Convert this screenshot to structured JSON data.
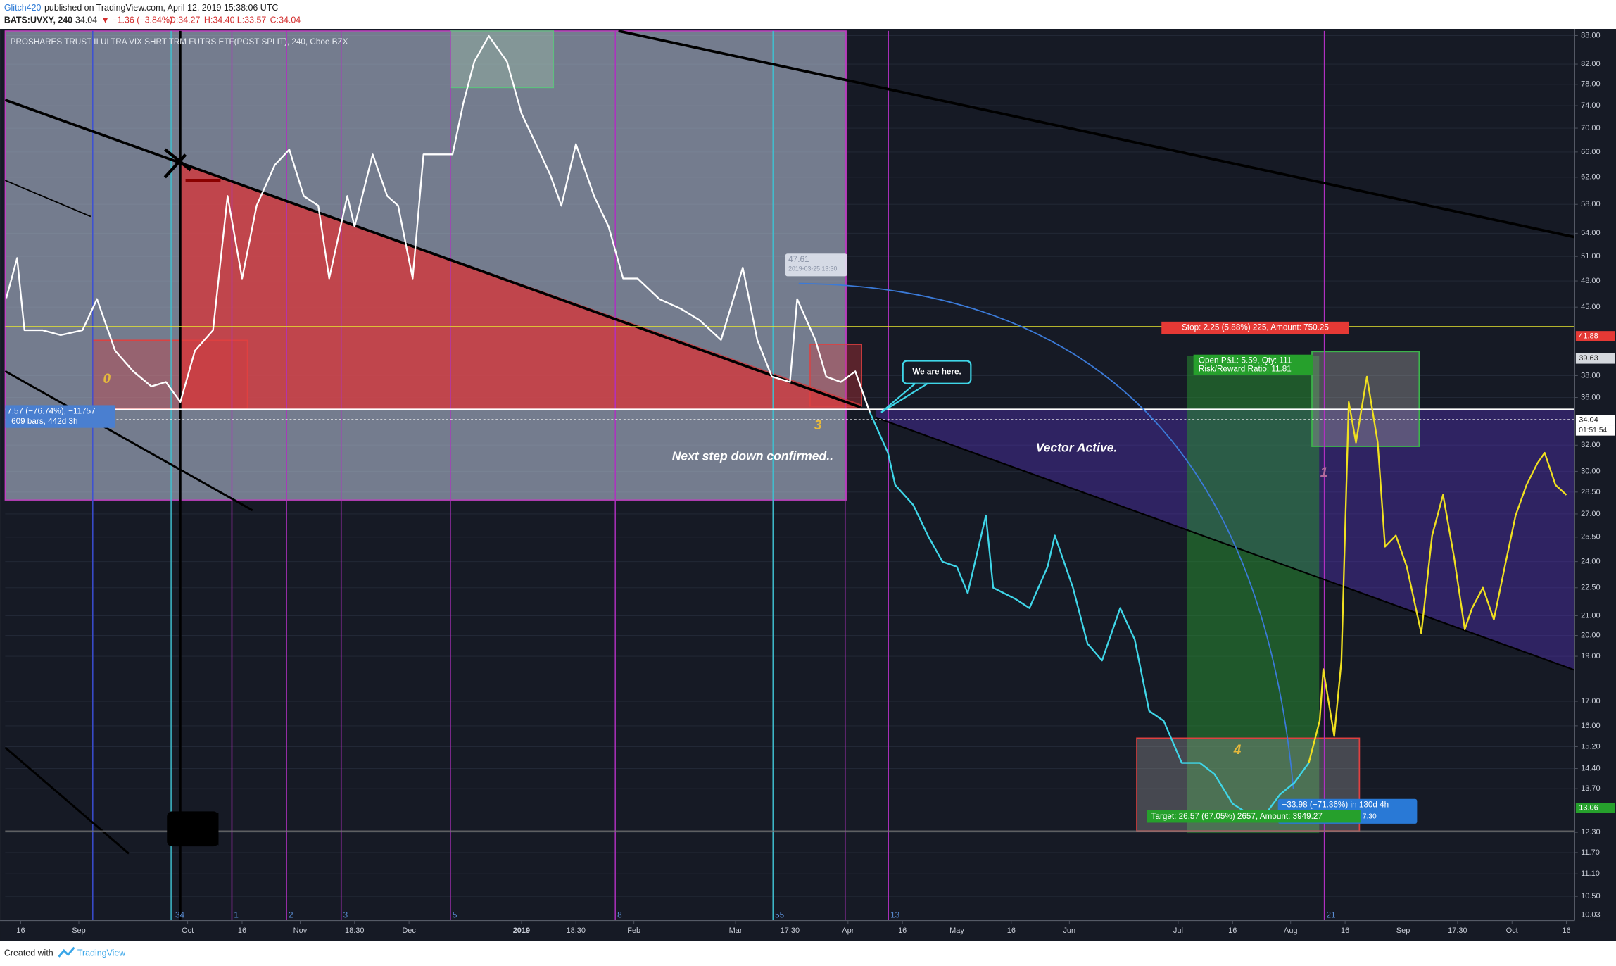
{
  "chart_data": {
    "type": "line",
    "title": "PROSHARES TRUST II ULTRA VIX SHRT TRM FUTRS ETF(POST SPLIT), 240, Cboe BZX",
    "header": {
      "author": "Glitch420",
      "published": "published on TradingView.com, April 12, 2019 15:38:06 UTC",
      "symbol": "BATS:UVXY, 240",
      "last": "34.04",
      "change": "▼ −1.36 (−3.84%)",
      "open": "O:34.27",
      "high": "H:34.40",
      "low": "L:33.57",
      "close": "C:34.04"
    },
    "footer": {
      "created": "Created with",
      "brand": "TradingView"
    },
    "log_scale": true,
    "grid": true,
    "xlim": [
      10.7,
      443.3
    ],
    "ylim": [
      9.89,
      89
    ],
    "xticks": [
      {
        "value": 15,
        "label": "16"
      },
      {
        "value": 31,
        "label": "Sep"
      },
      {
        "value": 61,
        "label": "Oct"
      },
      {
        "value": 76,
        "label": "16"
      },
      {
        "value": 92,
        "label": "Nov"
      },
      {
        "value": 107,
        "label": "18:30"
      },
      {
        "value": 122,
        "label": "Dec"
      },
      {
        "value": 153,
        "label": "2019"
      },
      {
        "value": 168,
        "label": "18:30"
      },
      {
        "value": 184,
        "label": "Feb"
      },
      {
        "value": 212,
        "label": "Mar"
      },
      {
        "value": 227,
        "label": "17:30"
      },
      {
        "value": 243,
        "label": "Apr"
      },
      {
        "value": 258,
        "label": "16"
      },
      {
        "value": 273,
        "label": "May"
      },
      {
        "value": 288,
        "label": "16"
      },
      {
        "value": 304,
        "label": "Jun"
      },
      {
        "value": 334,
        "label": "Jul"
      },
      {
        "value": 349,
        "label": "16"
      },
      {
        "value": 365,
        "label": "Aug"
      },
      {
        "value": 380,
        "label": "16"
      },
      {
        "value": 396,
        "label": "Sep"
      },
      {
        "value": 411,
        "label": "17:30"
      },
      {
        "value": 426,
        "label": "Oct"
      },
      {
        "value": 441,
        "label": "16"
      }
    ],
    "yticks": [
      {
        "value": 88,
        "label": "88.00"
      },
      {
        "value": 82,
        "label": "82.00"
      },
      {
        "value": 78,
        "label": "78.00"
      },
      {
        "value": 74,
        "label": "74.00"
      },
      {
        "value": 70,
        "label": "70.00"
      },
      {
        "value": 66,
        "label": "66.00"
      },
      {
        "value": 62,
        "label": "62.00"
      },
      {
        "value": 58,
        "label": "58.00"
      },
      {
        "value": 54,
        "label": "54.00"
      },
      {
        "value": 51,
        "label": "51.00"
      },
      {
        "value": 48,
        "label": "48.00"
      },
      {
        "value": 45,
        "label": "45.00"
      },
      {
        "value": 38,
        "label": "38.00"
      },
      {
        "value": 36,
        "label": "36.00"
      },
      {
        "value": 32,
        "label": "32.00"
      },
      {
        "value": 30,
        "label": "30.00"
      },
      {
        "value": 28.5,
        "label": "28.50"
      },
      {
        "value": 27,
        "label": "27.00"
      },
      {
        "value": 25.5,
        "label": "25.50"
      },
      {
        "value": 24,
        "label": "24.00"
      },
      {
        "value": 22.5,
        "label": "22.50"
      },
      {
        "value": 21,
        "label": "21.00"
      },
      {
        "value": 20,
        "label": "20.00"
      },
      {
        "value": 19,
        "label": "19.00"
      },
      {
        "value": 17,
        "label": "17.00"
      },
      {
        "value": 16,
        "label": "16.00"
      },
      {
        "value": 15.2,
        "label": "15.20"
      },
      {
        "value": 14.4,
        "label": "14.40"
      },
      {
        "value": 13.7,
        "label": "13.70"
      },
      {
        "value": 12.3,
        "label": "12.30"
      },
      {
        "value": 11.7,
        "label": "11.70"
      },
      {
        "value": 11.1,
        "label": "11.10"
      },
      {
        "value": 10.5,
        "label": "10.50"
      },
      {
        "value": 10.03,
        "label": "10.03"
      }
    ],
    "price_badges": [
      {
        "value": 41.88,
        "color": "#e53935"
      },
      {
        "value": 39.63,
        "color": "#d5d8de"
      },
      {
        "value": 34.04,
        "color": "#ffffff"
      },
      {
        "value": 13.06,
        "color": "#26a02c"
      }
    ],
    "countdown": "01:51:54",
    "series": [
      {
        "color": "#ffffff",
        "x": [
          11,
          14,
          16,
          21,
          26,
          32,
          36,
          41,
          46,
          51,
          55,
          59,
          63,
          68,
          72,
          76,
          80,
          85,
          89,
          93,
          97,
          100,
          105,
          107,
          112,
          116,
          119,
          123,
          126,
          130,
          134,
          137,
          140,
          144,
          149,
          153,
          157,
          161,
          164,
          168,
          173,
          177,
          181,
          185,
          191,
          197,
          202,
          208,
          214,
          218,
          222,
          227,
          229,
          234,
          237,
          241,
          245,
          249
        ],
        "values": [
          46,
          50.8,
          42.5,
          42.5,
          42,
          42.5,
          45.9,
          40.4,
          38.4,
          37,
          37.4,
          35.6,
          40.4,
          42.5,
          59.2,
          48.3,
          57.8,
          63.9,
          66.4,
          59.2,
          57.8,
          48.3,
          59.2,
          54.9,
          65.6,
          59.2,
          57.8,
          48.3,
          65.6,
          65.6,
          65.6,
          74.5,
          82.5,
          87.9,
          82.5,
          72.6,
          67.3,
          62.3,
          57.8,
          67.3,
          59.2,
          54.9,
          48.3,
          48.3,
          45.9,
          44.8,
          43.6,
          41.5,
          49.6,
          41.5,
          37.9,
          37.4,
          45.9,
          41.5,
          37.9,
          37.4,
          38.4,
          34.7
        ]
      },
      {
        "color": "#3fd6e8",
        "x": [
          249,
          254,
          256,
          261,
          265,
          269,
          273,
          276,
          281,
          283,
          289,
          293,
          298,
          300,
          305,
          309,
          313,
          318,
          322,
          326,
          330,
          335,
          340,
          344,
          349,
          353,
          357,
          362,
          366,
          370
        ],
        "values": [
          34.7,
          31.4,
          29,
          27.6,
          25.6,
          24,
          23.7,
          22.2,
          26.9,
          22.5,
          21.9,
          21.4,
          23.7,
          25.6,
          22.5,
          19.6,
          18.8,
          21.4,
          19.8,
          16.6,
          16.2,
          14.6,
          14.6,
          14.2,
          13.2,
          12.9,
          12.7,
          13.5,
          13.9,
          14.6
        ]
      },
      {
        "color": "#f0e020",
        "x": [
          370,
          373,
          374,
          377,
          379,
          381,
          383,
          386,
          389,
          391,
          394,
          397,
          401,
          404,
          407,
          410,
          413,
          415,
          418,
          421,
          424,
          427,
          430,
          433,
          435,
          438,
          441
        ],
        "values": [
          14.6,
          16.2,
          18.4,
          15.6,
          18.8,
          35.6,
          32.2,
          37.9,
          32.2,
          24.9,
          25.6,
          23.7,
          20.1,
          25.6,
          28.3,
          24.3,
          20.3,
          21.4,
          22.5,
          20.8,
          23.7,
          26.9,
          29,
          30.6,
          31.4,
          29,
          28.3
        ]
      }
    ],
    "annotations": {
      "high_price": "47.61",
      "high_time": "2019-03-25 13:30",
      "wave_0": "0",
      "wave_3": "3",
      "wave_4": "4",
      "wave_1": "1",
      "here": "We are here.",
      "confirmed": "Next step down confirmed..",
      "vector": "Vector Active.",
      "stop": "Stop: 2.25 (5.88%) 225, Amount: 750.25",
      "pnl": "Open P&L: 5.59, Qty: 111",
      "rr": "Risk/Reward Ratio: 11.81",
      "target": "Target: 26.57 (67.05%) 2657, Amount: 3949.27",
      "range": "−33.98 (−71.36%) in 130d 4h",
      "range_time": "7:30",
      "measure": "7.57 (−76.74%), −11757",
      "measure_bars": "609 bars, 442d 3h",
      "cycles": [
        "34",
        "1",
        "2",
        "3",
        "5",
        "8",
        "55",
        "13",
        "21"
      ]
    }
  }
}
